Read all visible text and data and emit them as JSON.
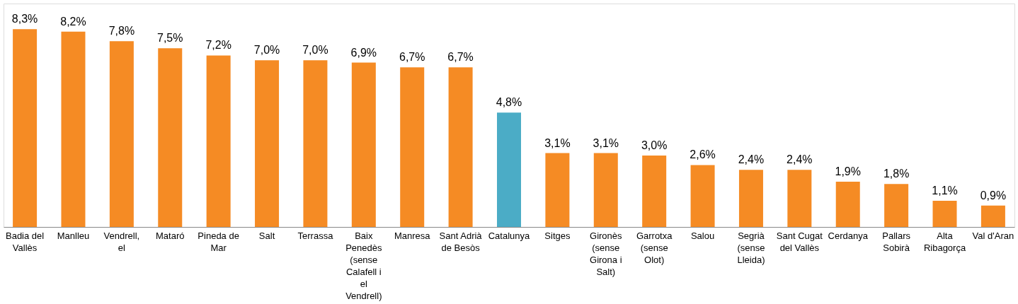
{
  "chart_data": {
    "type": "bar",
    "categories": [
      "Badia del Vallès",
      "Manlleu",
      "Vendrell, el",
      "Mataró",
      "Pineda de Mar",
      "Salt",
      "Terrassa",
      "Baix Penedès (sense Calafell i el Vendrell)",
      "Manresa",
      "Sant Adrià de Besòs",
      "Catalunya",
      "Sitges",
      "Gironès (sense Girona i Salt)",
      "Garrotxa (sense Olot)",
      "Salou",
      "Segrià (sense Lleida)",
      "Sant Cugat del Vallès",
      "Cerdanya",
      "Pallars Sobirà",
      "Alta Ribagorça",
      "Val d'Aran"
    ],
    "values": [
      8.3,
      8.2,
      7.8,
      7.5,
      7.2,
      7.0,
      7.0,
      6.9,
      6.7,
      6.7,
      4.8,
      3.1,
      3.1,
      3.0,
      2.6,
      2.4,
      2.4,
      1.9,
      1.8,
      1.1,
      0.9
    ],
    "value_labels": [
      "8,3%",
      "8,2%",
      "7,8%",
      "7,5%",
      "7,2%",
      "7,0%",
      "7,0%",
      "6,9%",
      "6,7%",
      "6,7%",
      "4,8%",
      "3,1%",
      "3,1%",
      "3,0%",
      "2,6%",
      "2,4%",
      "2,4%",
      "1,9%",
      "1,8%",
      "1,1%",
      "0,9%"
    ],
    "colors": [
      "#f58b24",
      "#f58b24",
      "#f58b24",
      "#f58b24",
      "#f58b24",
      "#f58b24",
      "#f58b24",
      "#f58b24",
      "#f58b24",
      "#f58b24",
      "#4bacc6",
      "#f58b24",
      "#f58b24",
      "#f58b24",
      "#f58b24",
      "#f58b24",
      "#f58b24",
      "#f58b24",
      "#f58b24",
      "#f58b24",
      "#f58b24"
    ],
    "grid": false
  }
}
